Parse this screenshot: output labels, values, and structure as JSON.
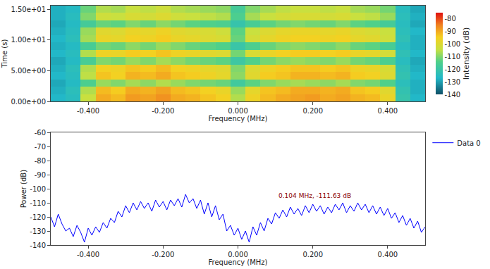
{
  "chart_data": [
    {
      "type": "heatmap",
      "xlabel": "Frequency (MHz)",
      "ylabel": "Time (s)",
      "colorbar_label": "Intensity (dB)",
      "x": [
        -0.48,
        -0.44,
        -0.4,
        -0.36,
        -0.32,
        -0.28,
        -0.24,
        -0.2,
        -0.16,
        -0.12,
        -0.08,
        -0.04,
        0,
        0.04,
        0.08,
        0.12,
        0.16,
        0.2,
        0.24,
        0.28,
        0.32,
        0.36,
        0.4,
        0.44,
        0.48
      ],
      "y": [
        0.6,
        1.8,
        3.0,
        4.2,
        5.4,
        6.6,
        7.8,
        9.0,
        10.2,
        11.4,
        12.6,
        13.8,
        15.0
      ],
      "cells": [
        [
          -127,
          -125,
          -104,
          -90,
          -92,
          -88,
          -89,
          -87,
          -90,
          -91,
          -93,
          -95,
          -106,
          -96,
          -92,
          -90,
          -89,
          -88,
          -90,
          -89,
          -91,
          -92,
          -97,
          -121,
          -127
        ],
        [
          -128,
          -124,
          -106,
          -92,
          -94,
          -90,
          -91,
          -89,
          -92,
          -93,
          -95,
          -97,
          -108,
          -98,
          -93,
          -92,
          -90,
          -90,
          -91,
          -90,
          -93,
          -94,
          -99,
          -122,
          -128
        ],
        [
          -129,
          -126,
          -115,
          -108,
          -110,
          -107,
          -109,
          -106,
          -108,
          -110,
          -111,
          -112,
          -118,
          -113,
          -110,
          -108,
          -107,
          -108,
          -109,
          -107,
          -110,
          -111,
          -114,
          -124,
          -128
        ],
        [
          -127,
          -125,
          -105,
          -93,
          -95,
          -91,
          -92,
          -90,
          -93,
          -94,
          -96,
          -98,
          -109,
          -99,
          -94,
          -93,
          -91,
          -91,
          -92,
          -91,
          -94,
          -95,
          -100,
          -122,
          -127
        ],
        [
          -128,
          -124,
          -106,
          -95,
          -96,
          -93,
          -94,
          -92,
          -95,
          -96,
          -98,
          -99,
          -110,
          -100,
          -96,
          -94,
          -93,
          -93,
          -94,
          -93,
          -96,
          -97,
          -101,
          -123,
          -128
        ],
        [
          -129,
          -126,
          -116,
          -110,
          -111,
          -108,
          -110,
          -107,
          -109,
          -111,
          -112,
          -113,
          -119,
          -114,
          -111,
          -109,
          -108,
          -109,
          -110,
          -108,
          -111,
          -112,
          -115,
          -125,
          -129
        ],
        [
          -127,
          -125,
          -106,
          -96,
          -97,
          -94,
          -95,
          -93,
          -96,
          -97,
          -99,
          -100,
          -111,
          -101,
          -97,
          -95,
          -94,
          -94,
          -95,
          -94,
          -97,
          -98,
          -102,
          -123,
          -127
        ],
        [
          -128,
          -126,
          -116,
          -111,
          -112,
          -109,
          -111,
          -108,
          -110,
          -112,
          -113,
          -114,
          -120,
          -115,
          -112,
          -110,
          -109,
          -110,
          -111,
          -109,
          -112,
          -113,
          -116,
          -125,
          -128
        ],
        [
          -127,
          -124,
          -107,
          -97,
          -98,
          -95,
          -96,
          -94,
          -97,
          -98,
          -100,
          -101,
          -112,
          -102,
          -98,
          -96,
          -95,
          -95,
          -96,
          -95,
          -98,
          -99,
          -103,
          -123,
          -128
        ],
        [
          -128,
          -125,
          -108,
          -99,
          -100,
          -97,
          -98,
          -96,
          -99,
          -100,
          -101,
          -103,
          -113,
          -104,
          -100,
          -98,
          -97,
          -97,
          -98,
          -97,
          -100,
          -101,
          -104,
          -124,
          -127
        ],
        [
          -129,
          -126,
          -117,
          -112,
          -113,
          -110,
          -112,
          -109,
          -111,
          -113,
          -114,
          -115,
          -121,
          -116,
          -113,
          -111,
          -110,
          -111,
          -112,
          -110,
          -113,
          -114,
          -117,
          -125,
          -129
        ],
        [
          -128,
          -125,
          -110,
          -103,
          -104,
          -101,
          -102,
          -100,
          -103,
          -104,
          -105,
          -106,
          -115,
          -107,
          -104,
          -102,
          -101,
          -101,
          -102,
          -101,
          -104,
          -105,
          -108,
          -124,
          -128
        ],
        [
          -128,
          -126,
          -112,
          -106,
          -107,
          -104,
          -105,
          -103,
          -106,
          -107,
          -108,
          -109,
          -117,
          -110,
          -107,
          -105,
          -104,
          -104,
          -105,
          -104,
          -107,
          -108,
          -111,
          -125,
          -129
        ]
      ],
      "xlim": [
        -0.5,
        0.5
      ],
      "ylim": [
        0,
        15.6
      ],
      "xticks": [
        {
          "value": -0.4,
          "label": "-0.400"
        },
        {
          "value": -0.2,
          "label": "-0.200"
        },
        {
          "value": 0,
          "label": "0.000"
        },
        {
          "value": 0.2,
          "label": "0.200"
        },
        {
          "value": 0.4,
          "label": "0.400"
        }
      ],
      "yticks": [
        {
          "value": 0,
          "label": "0.00e+00"
        },
        {
          "value": 5,
          "label": "5.00e+00"
        },
        {
          "value": 10,
          "label": "1.00e+01"
        },
        {
          "value": 15,
          "label": "1.50e+01"
        }
      ],
      "colorbar_range": [
        -140,
        -75
      ],
      "colorbar_ticks": [
        -140,
        -130,
        -120,
        -110,
        -100,
        -90,
        -80
      ],
      "grid": false
    },
    {
      "type": "line",
      "xlabel": "Frequency (MHz)",
      "ylabel": "Power (dB)",
      "x": [
        -0.5,
        -0.49,
        -0.48,
        -0.47,
        -0.46,
        -0.45,
        -0.44,
        -0.43,
        -0.42,
        -0.41,
        -0.4,
        -0.39,
        -0.38,
        -0.37,
        -0.36,
        -0.35,
        -0.34,
        -0.33,
        -0.32,
        -0.31,
        -0.3,
        -0.29,
        -0.28,
        -0.27,
        -0.26,
        -0.25,
        -0.24,
        -0.23,
        -0.22,
        -0.21,
        -0.2,
        -0.19,
        -0.18,
        -0.17,
        -0.16,
        -0.15,
        -0.14,
        -0.13,
        -0.12,
        -0.11,
        -0.1,
        -0.09,
        -0.08,
        -0.07,
        -0.06,
        -0.05,
        -0.04,
        -0.03,
        -0.02,
        -0.01,
        0.0,
        0.01,
        0.02,
        0.03,
        0.04,
        0.05,
        0.06,
        0.07,
        0.08,
        0.09,
        0.1,
        0.11,
        0.12,
        0.13,
        0.14,
        0.15,
        0.16,
        0.17,
        0.18,
        0.19,
        0.2,
        0.21,
        0.22,
        0.23,
        0.24,
        0.25,
        0.26,
        0.27,
        0.28,
        0.29,
        0.3,
        0.31,
        0.32,
        0.33,
        0.34,
        0.35,
        0.36,
        0.37,
        0.38,
        0.39,
        0.4,
        0.41,
        0.42,
        0.43,
        0.44,
        0.45,
        0.46,
        0.47,
        0.48,
        0.49,
        0.5
      ],
      "series": [
        {
          "name": "Data 0",
          "color": "#0000ff",
          "values": [
            -120,
            -127,
            -118,
            -125,
            -130,
            -128,
            -134,
            -126,
            -131,
            -138,
            -128,
            -133,
            -127,
            -131,
            -124,
            -128,
            -121,
            -124,
            -116,
            -120,
            -112,
            -117,
            -110,
            -115,
            -109,
            -114,
            -110,
            -116,
            -108,
            -113,
            -109,
            -115,
            -108,
            -112,
            -107,
            -113,
            -104,
            -110,
            -107,
            -114,
            -108,
            -118,
            -110,
            -120,
            -112,
            -122,
            -118,
            -130,
            -126,
            -133,
            -128,
            -136,
            -130,
            -138,
            -127,
            -133,
            -124,
            -130,
            -121,
            -125,
            -117,
            -121,
            -115,
            -120,
            -113,
            -118,
            -114,
            -119,
            -112,
            -117,
            -111,
            -116,
            -112,
            -118,
            -113,
            -117,
            -111,
            -115,
            -110,
            -117,
            -112,
            -116,
            -110,
            -115,
            -111,
            -117,
            -112,
            -118,
            -113,
            -119,
            -114,
            -121,
            -117,
            -124,
            -119,
            -126,
            -121,
            -128,
            -123,
            -131,
            -127
          ]
        }
      ],
      "xlim": [
        -0.5,
        0.5
      ],
      "ylim": [
        -140,
        -60
      ],
      "xticks": [
        {
          "value": -0.4,
          "label": "-0.400"
        },
        {
          "value": -0.2,
          "label": "-0.200"
        },
        {
          "value": 0,
          "label": "0.000"
        },
        {
          "value": 0.2,
          "label": "0.200"
        },
        {
          "value": 0.4,
          "label": "0.400"
        }
      ],
      "yticks": [
        -140,
        -130,
        -120,
        -110,
        -100,
        -90,
        -80,
        -70,
        -60
      ],
      "annotations": [
        {
          "text": "0.104 MHz, -111.63 dB",
          "x": 0.104,
          "y": -111.63
        }
      ],
      "legend": "right",
      "grid": false
    }
  ]
}
